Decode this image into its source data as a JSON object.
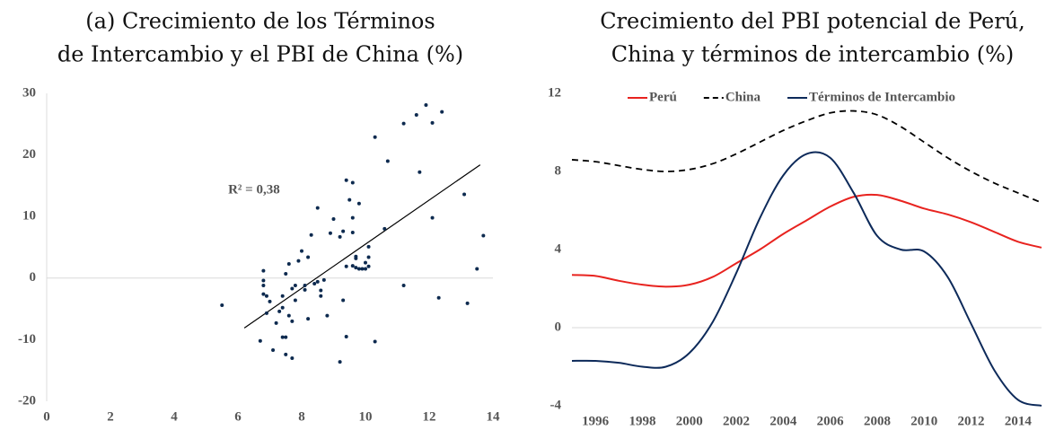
{
  "chart_data": [
    {
      "type": "scatter",
      "title": [
        "(a) Crecimiento de los Términos",
        "de Intercambio y el PBI de China (%)"
      ],
      "x": [
        5.5,
        6.7,
        6.8,
        6.8,
        6.8,
        6.8,
        6.9,
        7.0,
        6.9,
        7.1,
        7.2,
        7.3,
        7.4,
        7.4,
        7.5,
        7.4,
        7.5,
        7.6,
        7.5,
        7.7,
        7.6,
        7.7,
        7.7,
        7.8,
        7.8,
        7.9,
        8.0,
        8.1,
        8.1,
        8.2,
        8.3,
        8.2,
        8.4,
        8.5,
        8.5,
        8.6,
        8.6,
        8.7,
        8.8,
        8.9,
        9.0,
        9.2,
        9.2,
        9.3,
        9.3,
        9.4,
        9.4,
        9.4,
        9.6,
        9.5,
        9.6,
        9.6,
        9.6,
        9.7,
        9.7,
        9.7,
        9.8,
        9.8,
        9.9,
        10.0,
        10.0,
        10.1,
        10.1,
        10.1,
        10.3,
        10.3,
        10.6,
        10.7,
        11.2,
        11.2,
        11.6,
        11.7,
        11.9,
        12.1,
        12.1,
        12.3,
        12.4,
        13.1,
        13.2,
        13.5,
        13.7
      ],
      "y": [
        -4.4,
        -10.2,
        1.2,
        -0.4,
        -1.2,
        -2.6,
        -2.9,
        -3.8,
        -5.7,
        -11.7,
        -7.3,
        -5.4,
        -4.8,
        -9.6,
        -9.6,
        -2.9,
        0.7,
        2.3,
        -12.4,
        -13.0,
        -6.1,
        -7.0,
        -1.7,
        -1.2,
        -3.6,
        2.8,
        4.4,
        -1.2,
        -1.9,
        3.4,
        7.0,
        -6.6,
        -0.9,
        11.4,
        -0.6,
        -2.9,
        -2.0,
        -0.3,
        -6.1,
        7.3,
        9.6,
        -13.6,
        6.7,
        7.6,
        -3.6,
        -9.5,
        1.9,
        15.9,
        15.5,
        12.7,
        7.4,
        9.8,
        2.0,
        1.7,
        3.2,
        3.5,
        12.1,
        1.5,
        1.5,
        2.5,
        1.5,
        5.1,
        3.4,
        1.9,
        -10.3,
        22.9,
        8.0,
        19.0,
        25.1,
        -1.2,
        26.5,
        17.2,
        28.1,
        9.8,
        25.2,
        -3.2,
        27.0,
        13.6,
        -4.1,
        1.5,
        6.9
      ],
      "color": "#0d2a4f",
      "trendline": {
        "x": [
          6.2,
          13.6
        ],
        "y": [
          -8.1,
          18.4
        ],
        "color": "#000000"
      },
      "annotation": "R² = 0,38",
      "xlim": [
        0,
        14
      ],
      "xticks": [
        0,
        2,
        4,
        6,
        8,
        10,
        12,
        14
      ],
      "ylim": [
        -20,
        30
      ],
      "yticks": [
        -20,
        -10,
        0,
        10,
        20,
        30
      ],
      "zero_line": true
    },
    {
      "type": "line",
      "title": [
        "Crecimiento del PBI potencial de Perú,",
        "China y términos de intercambio (%)"
      ],
      "x": [
        1995,
        1996,
        1997,
        1998,
        1999,
        2000,
        2001,
        2002,
        2003,
        2004,
        2005,
        2006,
        2007,
        2008,
        2009,
        2010,
        2011,
        2012,
        2013,
        2014,
        2015
      ],
      "series": [
        {
          "name": "Perú",
          "color": "#e8231f",
          "dash": false,
          "values": [
            2.7,
            2.65,
            2.4,
            2.2,
            2.1,
            2.2,
            2.6,
            3.3,
            4.0,
            4.8,
            5.5,
            6.2,
            6.7,
            6.8,
            6.5,
            6.1,
            5.8,
            5.4,
            4.9,
            4.4,
            4.1
          ]
        },
        {
          "name": "China",
          "color": "#000000",
          "dash": true,
          "values": [
            8.6,
            8.5,
            8.3,
            8.1,
            8.0,
            8.1,
            8.4,
            8.9,
            9.5,
            10.1,
            10.6,
            11.0,
            11.1,
            10.9,
            10.3,
            9.5,
            8.7,
            8.0,
            7.4,
            6.9,
            6.4
          ]
        },
        {
          "name": "Términos de Intercambio",
          "color": "#0d2a5a",
          "dash": false,
          "values": [
            -1.7,
            -1.7,
            -1.8,
            -2.0,
            -2.0,
            -1.3,
            0.3,
            2.8,
            5.6,
            7.8,
            8.9,
            8.7,
            6.9,
            4.7,
            4.0,
            3.9,
            2.6,
            0.2,
            -2.2,
            -3.7,
            -4.0
          ]
        }
      ],
      "xlim": [
        1995,
        2015
      ],
      "xticks": [
        1996,
        1998,
        2000,
        2002,
        2004,
        2006,
        2008,
        2010,
        2012,
        2014
      ],
      "ylim": [
        -4,
        12
      ],
      "yticks": [
        -4,
        0,
        4,
        8,
        12
      ],
      "zero_line": true,
      "legend": "top"
    }
  ]
}
